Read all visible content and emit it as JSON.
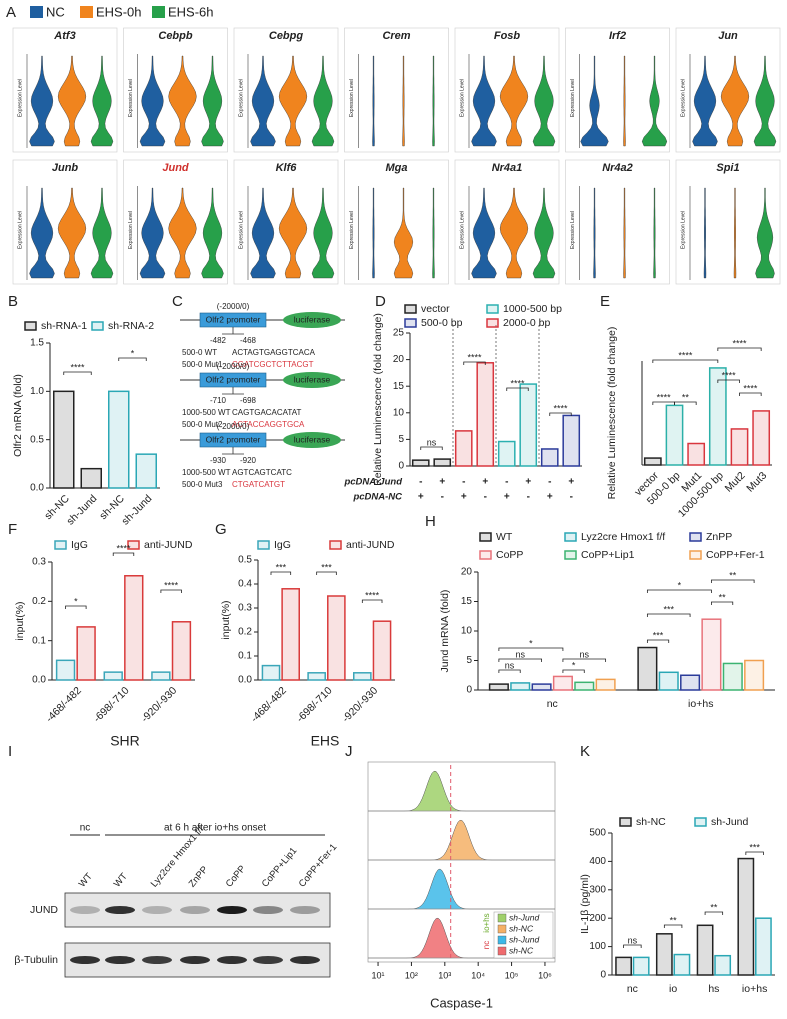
{
  "violin_panel": {
    "panel": "A",
    "legend": [
      {
        "name": "NC",
        "color": "#1f5fa0"
      },
      {
        "name": "EHS-0h",
        "color": "#f0841e"
      },
      {
        "name": "EHS-6h",
        "color": "#27a04a"
      }
    ],
    "y_label": "Expression Level",
    "genes": [
      {
        "name": "Atf3",
        "color": "#222222"
      },
      {
        "name": "Cebpb",
        "color": "#222222"
      },
      {
        "name": "Cebpg",
        "color": "#222222"
      },
      {
        "name": "Crem",
        "color": "#222222"
      },
      {
        "name": "Fosb",
        "color": "#222222"
      },
      {
        "name": "Irf2",
        "color": "#222222"
      },
      {
        "name": "Jun",
        "color": "#222222"
      },
      {
        "name": "Junb",
        "color": "#222222"
      },
      {
        "name": "Jund",
        "color": "#d0312d"
      },
      {
        "name": "Klf6",
        "color": "#222222"
      },
      {
        "name": "Mga",
        "color": "#222222"
      },
      {
        "name": "Nr4a1",
        "color": "#222222"
      },
      {
        "name": "Nr4a2",
        "color": "#222222"
      },
      {
        "name": "Spi1",
        "color": "#222222"
      }
    ]
  },
  "diagram": {
    "panel": "C",
    "constructs": [
      {
        "range": "(-2000/0)",
        "promoter": "Olfr2 promoter",
        "reporter": "luciferase",
        "sites": [
          "-482",
          "-468"
        ],
        "wt_label": "500-0 WT",
        "wt_seq": "ACTAGTGAGGTCACA",
        "mut_label": "500-0 Mut1",
        "mut_seq": "CGATCGCTCTTACGT"
      },
      {
        "range": "(-2000/0)",
        "promoter": "Olfr2 promoter",
        "reporter": "luciferase",
        "sites": [
          "-710",
          "-698"
        ],
        "wt_label": "1000-500 WT",
        "wt_seq": "CAGTGACACATAT",
        "mut_label": "500-0 Mut2",
        "mut_seq": "ACTACCAGGTGCA"
      },
      {
        "range": "(-2000/0)",
        "promoter": "Olfr2 promoter",
        "reporter": "luciferase",
        "sites": [
          "-930",
          "-920"
        ],
        "wt_label": "1000-500 WT",
        "wt_seq": "AGTCAGTCATC",
        "mut_label": "500-0 Mut3",
        "mut_seq": "CTGATCATGT"
      }
    ]
  },
  "chart_data": [
    {
      "panel": "B",
      "type": "bar",
      "y_label": "Olfr2 mRNA (fold)",
      "categories": [
        "sh-NC",
        "sh-Jund",
        "sh-NC",
        "sh-Jund"
      ],
      "series": [
        {
          "name": "sh-RNA-1",
          "color": "#222222",
          "values": [
            1,
            0.2,
            null,
            null
          ]
        },
        {
          "name": "sh-RNA-2",
          "color": "#2aa7b5",
          "values": [
            null,
            null,
            1,
            0.35
          ]
        }
      ],
      "ylim": [
        0,
        1.5
      ],
      "yticks": [
        {
          "value": 0,
          "label": "0.0"
        },
        0.5,
        {
          "value": 1,
          "label": "1.0"
        },
        1.5
      ],
      "significance": [
        "****",
        "*"
      ]
    },
    {
      "panel": "D",
      "type": "bar",
      "y_label": "Relative Luminescence (fold change)",
      "categories": [
        null,
        null,
        null,
        null,
        null,
        null,
        null,
        null
      ],
      "series": [
        {
          "name": "vector",
          "color": "#222222",
          "values": [
            1.1,
            1.3,
            null,
            null,
            null,
            null,
            null,
            null
          ]
        },
        {
          "name": "2000-0 bp",
          "color": "#d9363e",
          "values": [
            null,
            null,
            6.6,
            19.4,
            null,
            null,
            null,
            null
          ]
        },
        {
          "name": "1000-500 bp",
          "color": "#2bb0b0",
          "values": [
            null,
            null,
            null,
            null,
            4.6,
            15.4,
            null,
            null
          ]
        },
        {
          "name": "500-0 bp",
          "color": "#2b3b9a",
          "values": [
            null,
            null,
            null,
            null,
            null,
            null,
            3.2,
            9.5
          ]
        }
      ],
      "ylim": [
        0,
        25
      ],
      "yticks": [
        0,
        5,
        10,
        15,
        20,
        25
      ],
      "table": [
        {
          "label": "pcDNA-Jund",
          "cells": [
            "-",
            "+",
            "-",
            "+",
            "-",
            "+",
            "-",
            "+"
          ]
        },
        {
          "label": "pcDNA-NC",
          "cells": [
            "+",
            "-",
            "+",
            "-",
            "+",
            "-",
            "+",
            "-"
          ]
        }
      ],
      "significance": [
        "ns",
        "****",
        "****",
        "****"
      ]
    },
    {
      "panel": "E",
      "type": "bar",
      "y_label": "Relative Luminescence (fold change)",
      "categories": [
        "vector",
        "500-0 bp",
        "Mut1",
        "1000-500 bp",
        "Mut2",
        "Mut3"
      ],
      "values": [
        1,
        8.6,
        3.1,
        14,
        5.2,
        7.8
      ],
      "colors": [
        "#222222",
        "#2bb0a8",
        "#d9363e",
        "#2bb0a8",
        "#d9363e",
        "#d9363e"
      ],
      "ylim": [
        0,
        15
      ],
      "significance": [
        "****",
        "****",
        "****",
        "****",
        "****",
        "**"
      ]
    },
    {
      "panel": "F",
      "type": "bar",
      "y_label": "input(%)",
      "x_label": "SHR",
      "categories": [
        "-468/-482",
        "-698/-710",
        "-920/-930"
      ],
      "series": [
        {
          "name": "IgG",
          "color": "#3aa6b9",
          "values": [
            0.05,
            0.02,
            0.02
          ]
        },
        {
          "name": "anti-JUND",
          "color": "#d93a3a",
          "values": [
            0.135,
            0.265,
            0.148
          ]
        }
      ],
      "ylim": [
        0,
        0.3
      ],
      "yticks": [
        {
          "value": 0,
          "label": "0.0"
        },
        0.1,
        0.2,
        0.3
      ],
      "significance": [
        "*",
        "****",
        "****"
      ]
    },
    {
      "panel": "G",
      "type": "bar",
      "y_label": "input(%)",
      "x_label": "EHS",
      "categories": [
        "-468/-482",
        "-698/-710",
        "-920/-930"
      ],
      "series": [
        {
          "name": "IgG",
          "color": "#3aa6b9",
          "values": [
            0.06,
            0.03,
            0.03
          ]
        },
        {
          "name": "anti-JUND",
          "color": "#d93a3a",
          "values": [
            0.38,
            0.35,
            0.245
          ]
        }
      ],
      "ylim": [
        0,
        0.5
      ],
      "yticks": [
        {
          "value": 0,
          "label": "0.0"
        },
        0.1,
        0.2,
        0.3,
        0.4,
        0.5
      ],
      "significance": [
        "***",
        "***",
        "****"
      ]
    },
    {
      "panel": "H",
      "type": "bar",
      "y_label": "Jund mRNA (fold)",
      "categories": [
        "nc",
        "io+hs"
      ],
      "series": [
        {
          "name": "WT",
          "color": "#222222",
          "values": [
            1,
            7.2
          ]
        },
        {
          "name": "Lyz2cre Hmox1 f/f",
          "color": "#2aa7b5",
          "values": [
            1.2,
            3
          ]
        },
        {
          "name": "ZnPP",
          "color": "#2b3b9a",
          "values": [
            1,
            2.5
          ]
        },
        {
          "name": "CoPP",
          "color": "#e8727a",
          "values": [
            2.3,
            12
          ]
        },
        {
          "name": "CoPP+Lip1",
          "color": "#3cb371",
          "values": [
            1.3,
            4.5
          ]
        },
        {
          "name": "CoPP+Fer-1",
          "color": "#f0a050",
          "values": [
            1.8,
            5
          ]
        }
      ],
      "ylim": [
        0,
        20
      ],
      "yticks": [
        0,
        5,
        10,
        15,
        20
      ],
      "significance": [
        "ns",
        "ns",
        "*",
        "*",
        "ns",
        "***",
        "***",
        "*",
        "**",
        "**"
      ]
    },
    {
      "panel": "K",
      "type": "bar",
      "y_label": "IL-1β (pg/ml)",
      "categories": [
        "nc",
        "io",
        "hs",
        "io+hs"
      ],
      "series": [
        {
          "name": "sh-NC",
          "color": "#222222",
          "values": [
            62,
            145,
            175,
            410
          ]
        },
        {
          "name": "sh-Jund",
          "color": "#2aa7b5",
          "values": [
            62,
            72,
            68,
            200
          ]
        }
      ],
      "ylim": [
        0,
        500
      ],
      "yticks": [
        0,
        100,
        200,
        300,
        400,
        500
      ],
      "significance": [
        "ns",
        "**",
        "**",
        "***"
      ]
    }
  ],
  "blot": {
    "panel": "I",
    "group_labels": [
      "nc",
      "at 6 h after io+hs onset"
    ],
    "lanes": [
      "WT",
      "WT",
      "Lyz2cre Hmox1 f/f",
      "ZnPP",
      "CoPP",
      "CoPP+Lip1",
      "CoPP+Fer-1"
    ],
    "rows": [
      "JUND",
      "β-Tubulin"
    ]
  },
  "flow_panel": {
    "panel": "J",
    "x_label": "Caspase-1",
    "log_x": true,
    "xlim": [
      5,
      2000000
    ],
    "xticks": [
      {
        "value": 10,
        "label": "10¹"
      },
      {
        "value": 100,
        "label": "10²"
      },
      {
        "value": 1000,
        "label": "10³"
      },
      {
        "value": 10000,
        "label": "10⁴"
      },
      {
        "value": 100000,
        "label": "10⁵"
      },
      {
        "value": 1000000,
        "label": "10⁶"
      }
    ],
    "threshold": 1500,
    "groups": [
      {
        "label": "io+hs",
        "color": "#6aaa2a",
        "series": [
          {
            "name": "sh-Jund",
            "color": "#9fd06a",
            "mode": 500
          },
          {
            "name": "sh-NC",
            "color": "#f5b066",
            "mode": 3000
          }
        ]
      },
      {
        "label": "nc",
        "color": "#d9363e",
        "series": [
          {
            "name": "sh-Jund",
            "color": "#3db8e8",
            "mode": 700
          },
          {
            "name": "sh-NC",
            "color": "#ef6b6e",
            "mode": 600
          }
        ]
      }
    ]
  }
}
